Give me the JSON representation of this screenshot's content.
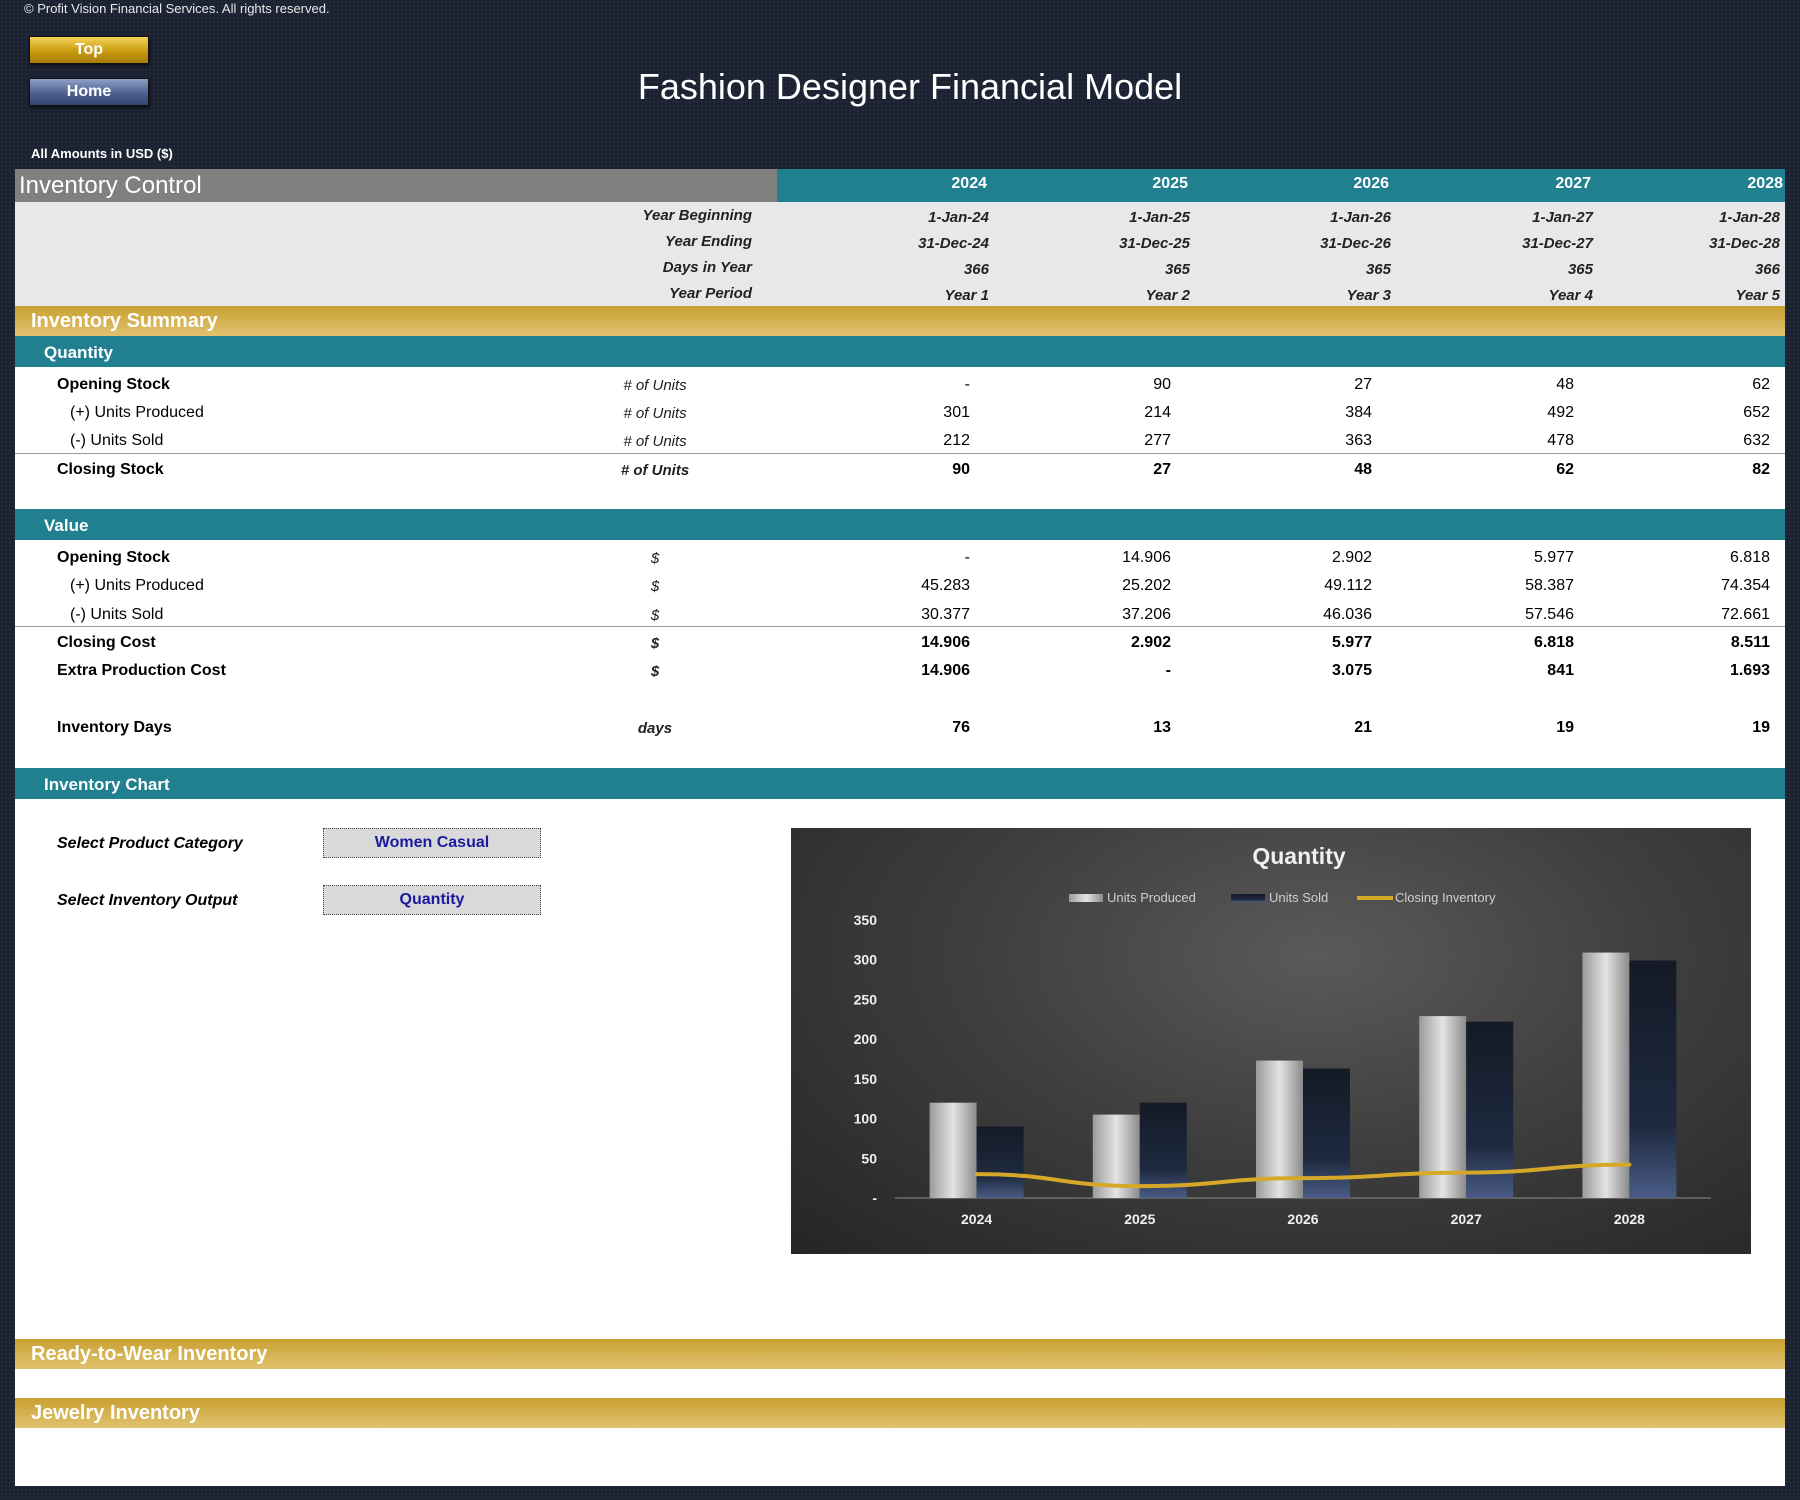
{
  "copyright": "© Profit Vision Financial Services. All rights reserved.",
  "nav": {
    "top_label": "Top",
    "home_label": "Home"
  },
  "title": "Fashion Designer Financial Model",
  "amounts_note": "All Amounts in  USD ($)",
  "section_title": "Inventory Control",
  "years": [
    "2024",
    "2025",
    "2026",
    "2027",
    "2028"
  ],
  "date_rows": [
    {
      "label": "Year Beginning",
      "values": [
        "1-Jan-24",
        "1-Jan-25",
        "1-Jan-26",
        "1-Jan-27",
        "1-Jan-28"
      ]
    },
    {
      "label": "Year Ending",
      "values": [
        "31-Dec-24",
        "31-Dec-25",
        "31-Dec-26",
        "31-Dec-27",
        "31-Dec-28"
      ]
    },
    {
      "label": "Days in Year",
      "values": [
        "366",
        "365",
        "365",
        "365",
        "366"
      ]
    },
    {
      "label": "Year Period",
      "values": [
        "Year 1",
        "Year 2",
        "Year 3",
        "Year 4",
        "Year 5"
      ]
    }
  ],
  "inventory_summary": "Inventory Summary",
  "quantity": {
    "title": "Quantity",
    "rows": [
      {
        "label": "Opening Stock",
        "unit": "# of Units",
        "values": [
          "-",
          "90",
          "27",
          "48",
          "62"
        ]
      },
      {
        "label": "(+) Units Produced",
        "unit": "# of Units",
        "values": [
          "301",
          "214",
          "384",
          "492",
          "652"
        ]
      },
      {
        "label": "(-) Units Sold",
        "unit": "# of Units",
        "values": [
          "212",
          "277",
          "363",
          "478",
          "632"
        ]
      },
      {
        "label": "Closing Stock",
        "unit": "# of Units",
        "values": [
          "90",
          "27",
          "48",
          "62",
          "82"
        ]
      }
    ]
  },
  "value": {
    "title": "Value",
    "rows": [
      {
        "label": "Opening Stock",
        "unit": "$",
        "values": [
          "-",
          "14.906",
          "2.902",
          "5.977",
          "6.818"
        ]
      },
      {
        "label": "(+) Units Produced",
        "unit": "$",
        "values": [
          "45.283",
          "25.202",
          "49.112",
          "58.387",
          "74.354"
        ]
      },
      {
        "label": "(-) Units Sold",
        "unit": "$",
        "values": [
          "30.377",
          "37.206",
          "46.036",
          "57.546",
          "72.661"
        ]
      },
      {
        "label": "Closing Cost",
        "unit": "$",
        "values": [
          "14.906",
          "2.902",
          "5.977",
          "6.818",
          "8.511"
        ]
      },
      {
        "label": "Extra Production Cost",
        "unit": "$",
        "values": [
          "14.906",
          "-",
          "3.075",
          "841",
          "1.693"
        ]
      },
      {
        "label": "Inventory Days",
        "unit": "days",
        "values": [
          "76",
          "13",
          "21",
          "19",
          "19"
        ]
      }
    ]
  },
  "inventory_chart": {
    "title": "Inventory Chart",
    "category_label": "Select Product Category",
    "category_value": "Women Casual",
    "output_label": "Select Inventory Output",
    "output_value": "Quantity"
  },
  "ready_to_wear": "Ready-to-Wear Inventory",
  "jewelry": "Jewelry Inventory",
  "chart_data": {
    "type": "bar",
    "title": "Quantity",
    "categories": [
      "2024",
      "2025",
      "2026",
      "2027",
      "2028"
    ],
    "series": [
      {
        "name": "Units Produced",
        "type": "bar",
        "values": [
          120,
          105,
          173,
          229,
          309
        ]
      },
      {
        "name": "Units Sold",
        "type": "bar",
        "values": [
          90,
          120,
          163,
          222,
          299
        ]
      },
      {
        "name": "Closing Inventory",
        "type": "line",
        "values": [
          30,
          15,
          25,
          32,
          42
        ]
      }
    ],
    "ylim": [
      0,
      350
    ],
    "yticks": [
      "-",
      "50",
      "100",
      "150",
      "200",
      "250",
      "300",
      "350"
    ],
    "legend_position": "top",
    "colors": {
      "produced": "#c8c8c8",
      "sold": "#1c2638",
      "closing": "#d6a82a"
    }
  }
}
